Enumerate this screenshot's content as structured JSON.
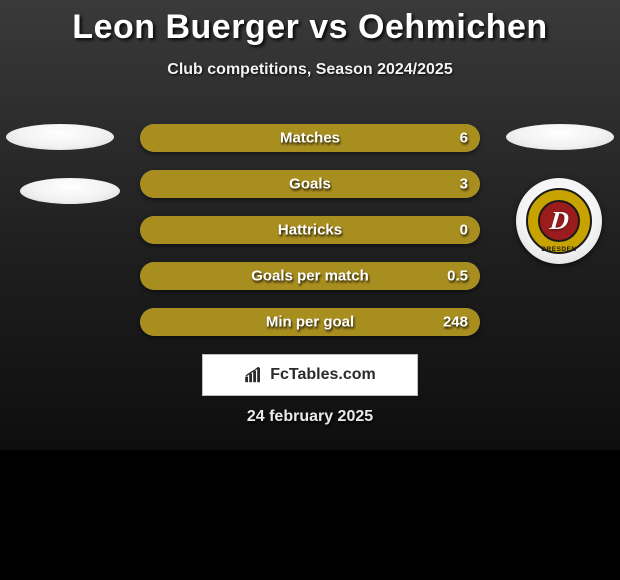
{
  "header": {
    "title": "Leon Buerger vs Oehmichen",
    "subtitle": "Club competitions, Season 2024/2025"
  },
  "colors": {
    "bar_fill": "#a88d1f",
    "bar_bg": "#7d7d7d",
    "title_text": "#ffffff",
    "card_bg_top": "#3a3a3a",
    "card_bg_bottom": "#0e0e0e"
  },
  "stats": [
    {
      "label": "Matches",
      "value": "6",
      "right_fill_pct": 100
    },
    {
      "label": "Goals",
      "value": "3",
      "right_fill_pct": 100
    },
    {
      "label": "Hattricks",
      "value": "0",
      "right_fill_pct": 100
    },
    {
      "label": "Goals per match",
      "value": "0.5",
      "right_fill_pct": 100
    },
    {
      "label": "Min per goal",
      "value": "248",
      "right_fill_pct": 100
    }
  ],
  "badge": {
    "letter": "D",
    "ring_text": "DRESDEN",
    "outer_color": "#c8a300",
    "inner_color": "#9b1c1c"
  },
  "footer": {
    "site": "FcTables.com",
    "date": "24 february 2025"
  }
}
